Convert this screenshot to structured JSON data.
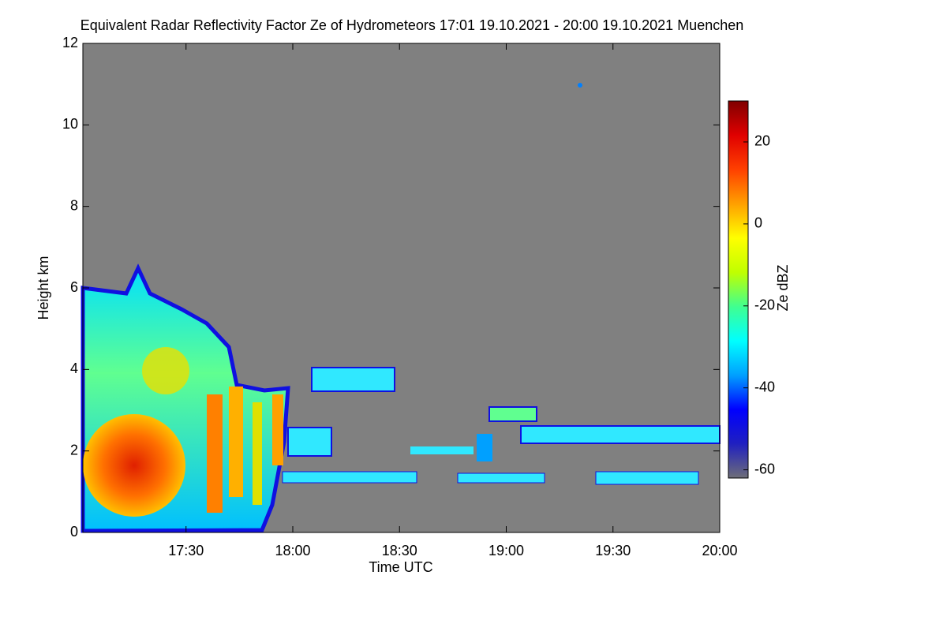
{
  "chart_data": {
    "type": "heatmap",
    "title": "Equivalent Radar Reflectivity Factor Ze of Hydrometeors   17:01 19.10.2021 - 20:00 19.10.2021 Muenchen",
    "xlabel": "Time UTC",
    "ylabel": "Height km",
    "colorbar_label": "Ze dBZ",
    "xlim": [
      17.0167,
      20.0
    ],
    "xticks": [
      {
        "value": 17.5,
        "label": "17:30"
      },
      {
        "value": 18.0,
        "label": "18:00"
      },
      {
        "value": 18.5,
        "label": "18:30"
      },
      {
        "value": 19.0,
        "label": "19:00"
      },
      {
        "value": 19.5,
        "label": "19:30"
      },
      {
        "value": 20.0,
        "label": "20:00"
      }
    ],
    "ylim": [
      0,
      12
    ],
    "yticks": [
      0,
      2,
      4,
      6,
      8,
      10,
      12
    ],
    "clim": [
      -62,
      30
    ],
    "cticks": [
      -60,
      -40,
      -20,
      0,
      20
    ],
    "background_color": "#808080",
    "colormap": [
      "#6e6e78",
      "#2020c0",
      "#0000ff",
      "#00a0ff",
      "#00ffff",
      "#40ff90",
      "#c0ff00",
      "#ffff00",
      "#ffa000",
      "#ff4000",
      "#e00000",
      "#800000"
    ]
  }
}
